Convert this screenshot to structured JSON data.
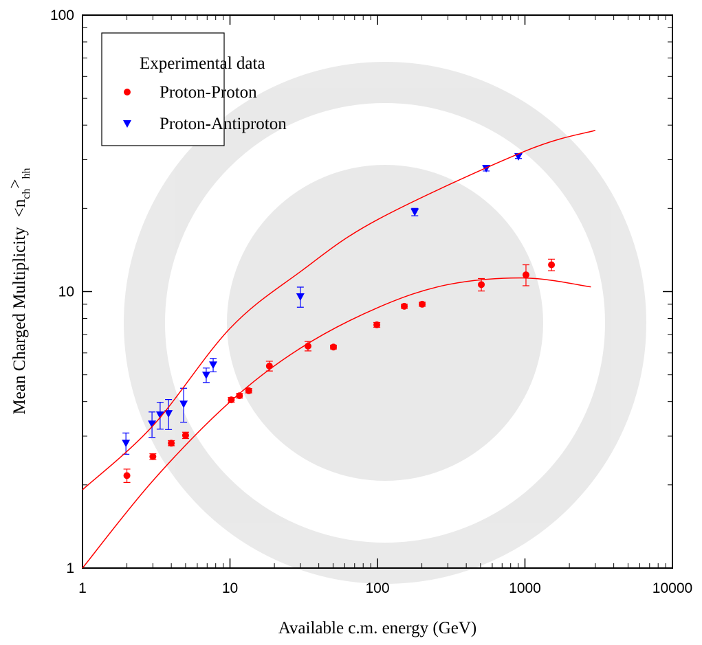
{
  "chart_data": {
    "type": "scatter",
    "xlabel": "Available c.m. energy (GeV)",
    "ylabel": {
      "text": "Mean Charged Multiplicity",
      "symbol": "<n",
      "sub1": "ch",
      "close": ">",
      "sub2": "hh"
    },
    "legend_title": "Experimental data",
    "xscale": "log",
    "yscale": "log",
    "xlim": [
      1,
      10000
    ],
    "ylim": [
      1,
      100
    ],
    "xticks": [
      1,
      10,
      100,
      1000,
      10000
    ],
    "yticks": [
      1,
      10,
      100
    ],
    "legend": "upper left",
    "series": [
      {
        "name": "Proton-Proton",
        "color": "#ff0000",
        "marker": "circle",
        "x": [
          2,
          3,
          4,
          5,
          10.2,
          11.6,
          13.4,
          18.5,
          33.8,
          50.3,
          99,
          152,
          201,
          506,
          1016,
          1513
        ],
        "values": [
          2.16,
          2.53,
          2.83,
          3.02,
          4.06,
          4.2,
          4.38,
          5.38,
          6.35,
          6.3,
          7.58,
          8.85,
          9.0,
          10.6,
          11.5,
          12.5
        ],
        "errors": [
          0.12,
          0.06,
          0.06,
          0.08,
          0.08,
          0.08,
          0.08,
          0.22,
          0.25,
          0.1,
          0.15,
          0.15,
          0.15,
          0.55,
          1.0,
          0.6
        ]
      },
      {
        "name": "Proton-Antiproton",
        "color": "#0000ff",
        "marker": "triangle-down",
        "x": [
          1.97,
          2.96,
          3.36,
          3.83,
          4.85,
          6.9,
          7.69,
          30,
          179,
          546,
          903
        ],
        "values": [
          2.83,
          3.32,
          3.58,
          3.62,
          3.92,
          4.99,
          5.43,
          9.58,
          19.4,
          27.9,
          30.8
        ],
        "errors": [
          0.25,
          0.35,
          0.4,
          0.45,
          0.55,
          0.3,
          0.3,
          0.8,
          0.6,
          0.6,
          0.5
        ]
      },
      {
        "color": "#ff0000",
        "marker": "line",
        "x": [
          1,
          3,
          10,
          30,
          100,
          1000,
          3000
        ],
        "values": [
          1.92,
          3.27,
          7.36,
          11.8,
          18.2,
          32.2,
          38.3
        ]
      },
      {
        "color": "#ff0000",
        "marker": "line",
        "x": [
          1,
          3,
          10,
          30,
          100,
          300,
          1000,
          2800
        ],
        "values": [
          1.0,
          2.07,
          3.99,
          6.24,
          8.74,
          10.6,
          11.2,
          10.4
        ]
      }
    ]
  }
}
